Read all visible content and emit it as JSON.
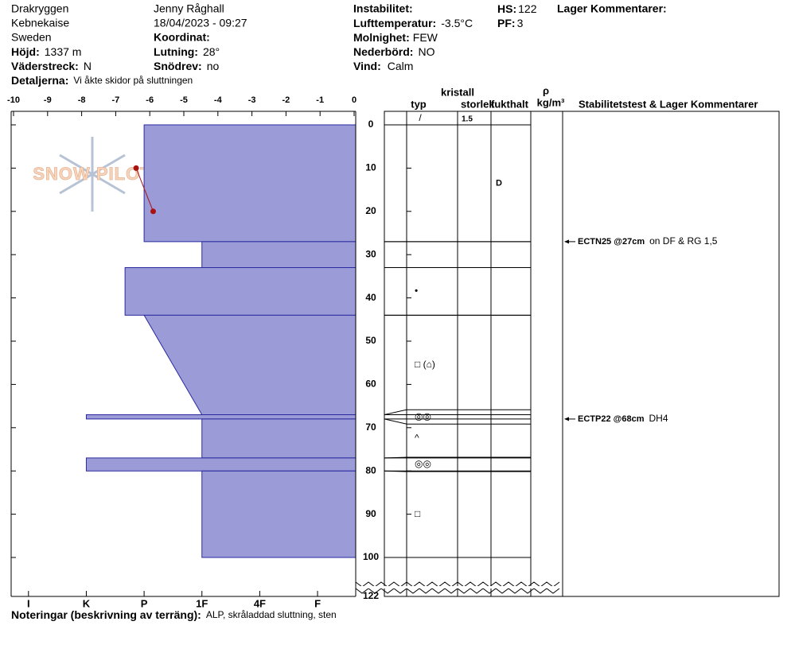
{
  "header": {
    "site": "Drakryggen",
    "area": "Kebnekaise",
    "country": "Sweden",
    "elevation": {
      "label": "Höjd:",
      "value": "1337 m"
    },
    "aspect": {
      "label": "Väderstreck:",
      "value": "N"
    },
    "details": {
      "label": "Detaljerna:",
      "value": "Vi åkte skidor på sluttningen"
    },
    "observer": "Jenny Råghall",
    "datetime": "18/04/2023 - 09:27",
    "coordinates": {
      "label": "Koordinat:"
    },
    "slope": {
      "label": "Lutning:",
      "value": "28°"
    },
    "drift": {
      "label": "Snödrev:",
      "value": "no"
    },
    "instability": {
      "label": "Instabilitet:"
    },
    "air_temp": {
      "label": "Lufttemperatur:",
      "value": "-3.5°C"
    },
    "sky": {
      "label": "Molnighet:",
      "value": "FEW"
    },
    "precip": {
      "label": "Nederbörd:",
      "value": "NO"
    },
    "wind": {
      "label": "Vind:",
      "value": "Calm"
    },
    "hs": {
      "label": "HS:",
      "value": "122"
    },
    "pf": {
      "label": "PF:",
      "value": "3"
    },
    "layer_comments": "Lager Kommentarer:"
  },
  "chart_data": {
    "type": "snow-profile",
    "logo": "SNOW PILOT",
    "xlim": [
      -10,
      0
    ],
    "xticks": [
      -10,
      -9,
      -8,
      -7,
      -6,
      -5,
      -4,
      -3,
      -2,
      -1,
      0
    ],
    "ylim": [
      0,
      122
    ],
    "yticks": [
      0,
      10,
      20,
      30,
      40,
      50,
      60,
      70,
      80,
      90,
      100,
      122
    ],
    "hardness_lim": [
      6.3,
      0.34
    ],
    "hardness_ticks": [
      {
        "value": 6,
        "label": "I"
      },
      {
        "value": 5,
        "label": "K"
      },
      {
        "value": 4,
        "label": "P"
      },
      {
        "value": 3,
        "label": "1F"
      },
      {
        "value": 2,
        "label": "4F"
      },
      {
        "value": 1,
        "label": "F"
      }
    ],
    "layer_color": "#9b9bd8",
    "temperature_color": "#aa1111",
    "temperature": {
      "depth": [
        10,
        20
      ],
      "values": [
        -6.4,
        -5.9
      ]
    },
    "surface": {
      "grain": "/",
      "size": "1.5"
    },
    "layers": [
      {
        "top": 0,
        "bottom": 27,
        "hardness": 4,
        "moisture": "D"
      },
      {
        "top": 27,
        "bottom": 33,
        "hardness": 3
      },
      {
        "top": 33,
        "bottom": 44,
        "hardness": 4.33,
        "grain": "•"
      },
      {
        "top": 44,
        "bottom": 67,
        "hardness": 4,
        "hardness_bottom": 3,
        "grain": "□ (⌂)"
      },
      {
        "top": 67,
        "bottom": 68,
        "hardness": 5,
        "grain": "◎◎"
      },
      {
        "top": 68,
        "bottom": 77,
        "hardness": 3,
        "grain": "^"
      },
      {
        "top": 77,
        "bottom": 80,
        "hardness": 5,
        "grain": "◎◎"
      },
      {
        "top": 80,
        "bottom": 100,
        "hardness": 3,
        "grain": "□"
      }
    ],
    "columns": {
      "crystal": "kristall",
      "type": "typ",
      "size": "storlek",
      "moisture": "fukthalt",
      "density": "ρ",
      "density_unit": "kg/m³",
      "tests": "Stabilitetstest & Lager Kommentarer"
    },
    "tests": [
      {
        "depth": 27,
        "label": "ECTN25 @27cm",
        "comment": "on DF & RG 1,5"
      },
      {
        "depth": 68,
        "label": "ECTP22 @68cm",
        "comment": "DH4"
      }
    ],
    "notes": {
      "label": "Noteringar (beskrivning av terräng):",
      "value": "ALP, skråladdad sluttning, sten"
    }
  }
}
